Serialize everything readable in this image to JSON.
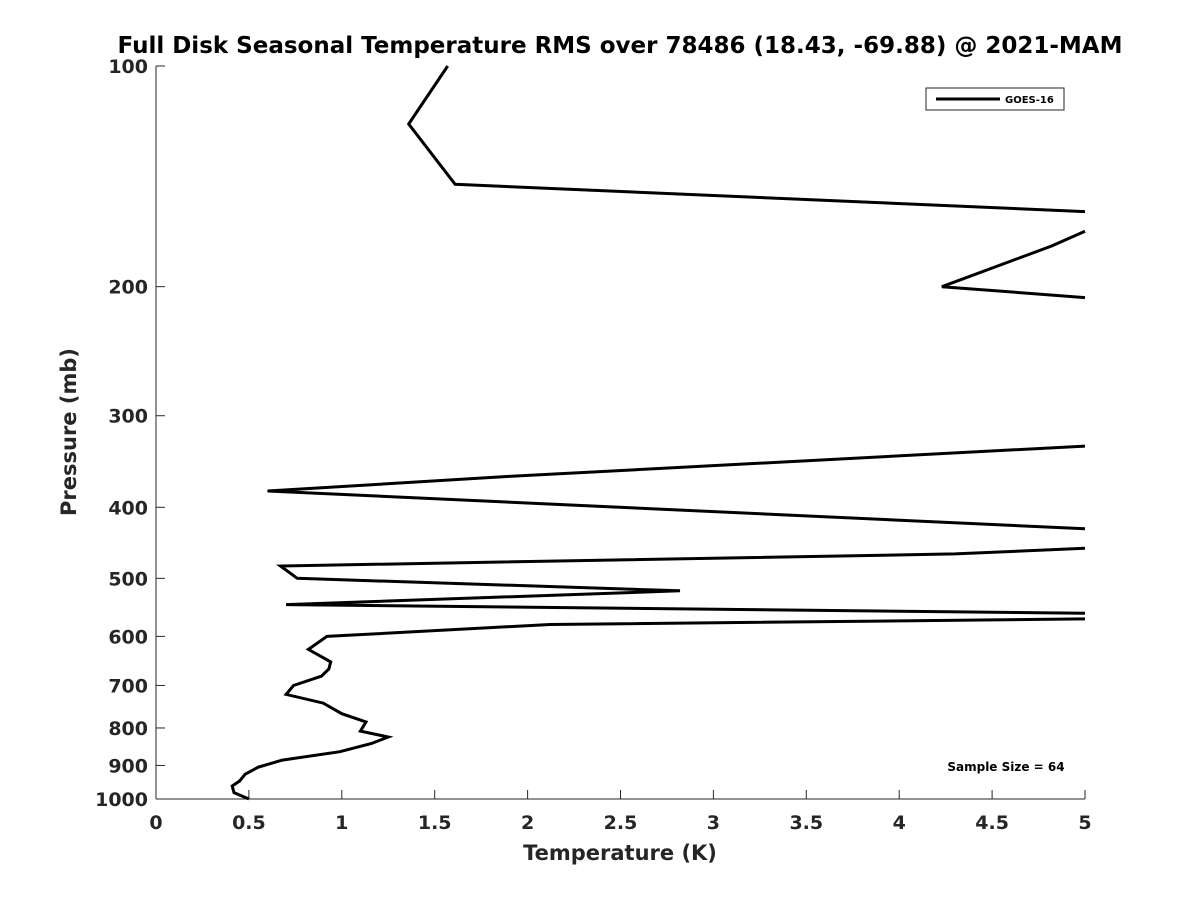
{
  "chart_data": {
    "type": "line",
    "title": "Full Disk Seasonal Temperature RMS over 78486 (18.43, -69.88) @ 2021-MAM",
    "xlabel": "Temperature (K)",
    "ylabel": "Pressure (mb)",
    "xlim": [
      0,
      5
    ],
    "ylim": [
      100,
      1000
    ],
    "y_scale": "log",
    "y_reversed": true,
    "grid": false,
    "legend_position": "top-right",
    "x_ticks": [
      "0",
      "0.5",
      "1",
      "1.5",
      "2",
      "2.5",
      "3",
      "3.5",
      "4",
      "4.5",
      "5"
    ],
    "y_ticks": [
      "100",
      "200",
      "300",
      "400",
      "500",
      "600",
      "700",
      "800",
      "900",
      "1000"
    ],
    "annotation": "Sample Size = 64",
    "series": [
      {
        "name": "GOES-16",
        "color": "#000000",
        "points": [
          {
            "x": 1.57,
            "p": 100
          },
          {
            "x": 1.36,
            "p": 120
          },
          {
            "x": 1.61,
            "p": 145
          },
          {
            "x": 5.0,
            "p": 158
          },
          {
            "x": null,
            "p": null
          },
          {
            "x": 5.0,
            "p": 168
          },
          {
            "x": 4.82,
            "p": 176
          },
          {
            "x": 4.23,
            "p": 200
          },
          {
            "x": 5.0,
            "p": 207
          },
          {
            "x": null,
            "p": null
          },
          {
            "x": 5.0,
            "p": 330
          },
          {
            "x": 1.9,
            "p": 363
          },
          {
            "x": 0.6,
            "p": 380
          },
          {
            "x": 5.0,
            "p": 428
          },
          {
            "x": null,
            "p": null
          },
          {
            "x": 5.0,
            "p": 455
          },
          {
            "x": 4.3,
            "p": 463
          },
          {
            "x": 0.67,
            "p": 481
          },
          {
            "x": 0.76,
            "p": 500
          },
          {
            "x": 2.82,
            "p": 520
          },
          {
            "x": 0.7,
            "p": 543
          },
          {
            "x": 5.0,
            "p": 558
          },
          {
            "x": null,
            "p": null
          },
          {
            "x": 5.0,
            "p": 568
          },
          {
            "x": 2.12,
            "p": 578
          },
          {
            "x": 0.92,
            "p": 600
          },
          {
            "x": 0.82,
            "p": 625
          },
          {
            "x": 0.94,
            "p": 650
          },
          {
            "x": 0.93,
            "p": 665
          },
          {
            "x": 0.89,
            "p": 680
          },
          {
            "x": 0.74,
            "p": 700
          },
          {
            "x": 0.7,
            "p": 720
          },
          {
            "x": 0.9,
            "p": 740
          },
          {
            "x": 1.0,
            "p": 765
          },
          {
            "x": 1.13,
            "p": 785
          },
          {
            "x": 1.1,
            "p": 808
          },
          {
            "x": 1.25,
            "p": 823
          },
          {
            "x": 1.16,
            "p": 840
          },
          {
            "x": 0.99,
            "p": 862
          },
          {
            "x": 0.68,
            "p": 885
          },
          {
            "x": 0.55,
            "p": 905
          },
          {
            "x": 0.48,
            "p": 925
          },
          {
            "x": 0.45,
            "p": 945
          },
          {
            "x": 0.41,
            "p": 960
          },
          {
            "x": 0.42,
            "p": 980
          },
          {
            "x": 0.5,
            "p": 1000
          }
        ]
      }
    ]
  }
}
